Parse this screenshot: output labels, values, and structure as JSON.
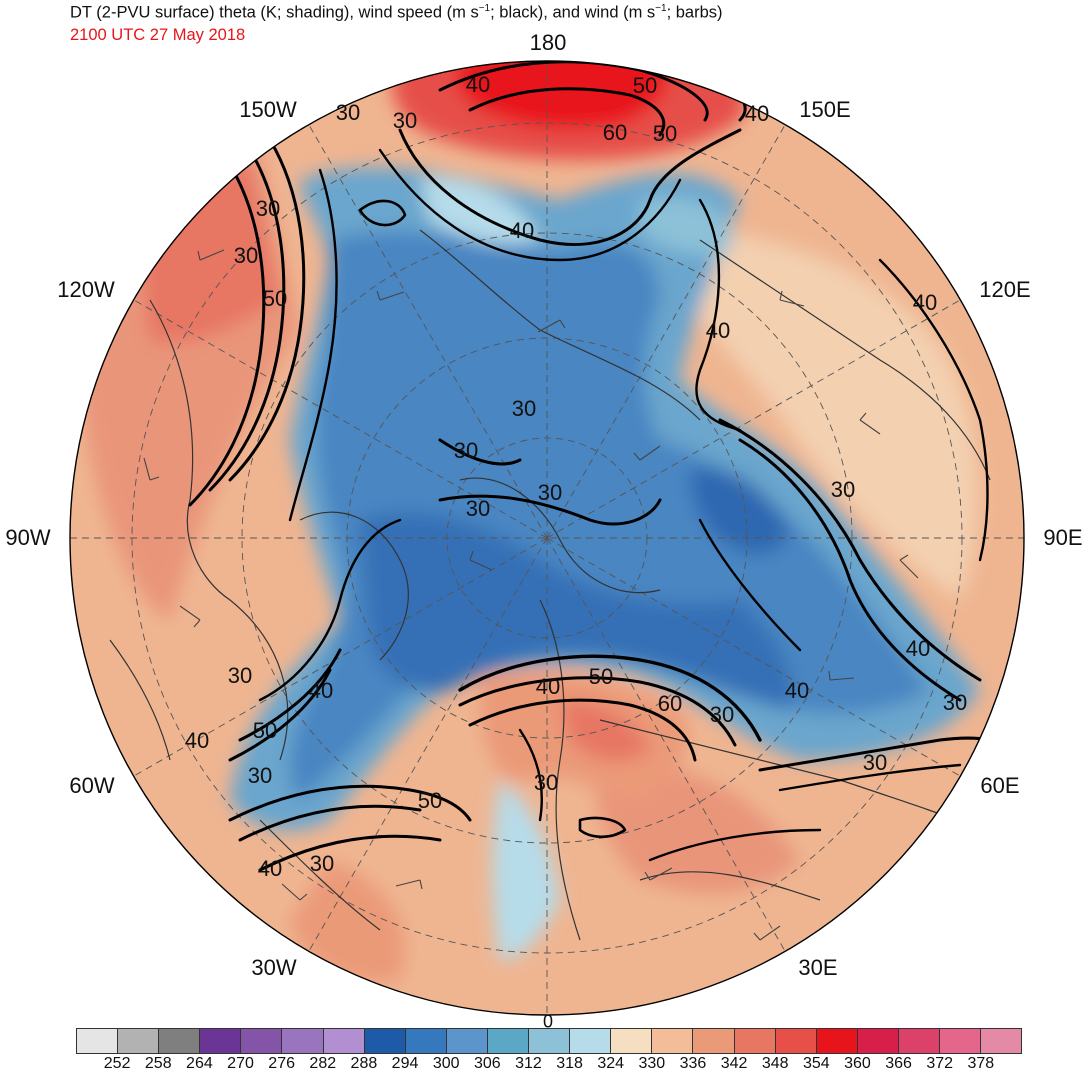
{
  "header": {
    "title_prefix": "DT (2-PVU surface) theta (K; shading), wind speed (m s",
    "title_mid1": "; black), and wind (m s",
    "title_suffix": "; barbs)",
    "title_sup": "−1",
    "valid_time": "2100 UTC 27 May 2018",
    "valid_time_color": "#e8141b"
  },
  "map": {
    "projection": "north polar stereographic",
    "longitude_labels": [
      "180",
      "150E",
      "120E",
      "90E",
      "60E",
      "30E",
      "0",
      "30W",
      "60W",
      "90W",
      "120W",
      "150W"
    ],
    "contour_labels": [
      "50",
      "60",
      "50",
      "40",
      "40",
      "30",
      "40",
      "30",
      "30",
      "40",
      "50",
      "30",
      "30",
      "30",
      "30",
      "30",
      "40",
      "40",
      "50",
      "60",
      "40",
      "30",
      "40",
      "30",
      "30",
      "30",
      "30",
      "40",
      "50",
      "40",
      "30",
      "50",
      "40",
      "30",
      "30"
    ]
  },
  "colorbar": {
    "colors": [
      "#e5e5e5",
      "#b2b2b2",
      "#7f7f7f",
      "#6b3596",
      "#8354a8",
      "#9a75bf",
      "#b28fd1",
      "#1d5aa8",
      "#3678be",
      "#5b95cc",
      "#5ba7c6",
      "#8cc1d8",
      "#b6dcea",
      "#f6dfc1",
      "#f2bd98",
      "#eb9a78",
      "#e77663",
      "#e65049",
      "#e8141b",
      "#d81f4a",
      "#dc416a",
      "#e4668a",
      "#e58aa6"
    ],
    "labels": [
      "252",
      "258",
      "264",
      "270",
      "276",
      "282",
      "288",
      "294",
      "300",
      "306",
      "312",
      "318",
      "324",
      "330",
      "336",
      "342",
      "348",
      "354",
      "360",
      "366",
      "372",
      "378"
    ]
  }
}
